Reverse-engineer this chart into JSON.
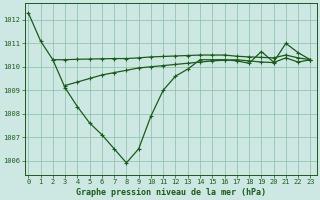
{
  "line1_x": [
    0,
    1,
    2,
    3,
    4,
    5,
    6,
    7,
    8,
    9,
    10,
    11,
    12,
    13,
    14,
    15,
    16,
    17,
    18,
    19,
    20,
    21,
    22,
    23
  ],
  "line1_y": [
    1012.3,
    1011.1,
    1010.3,
    1009.1,
    1008.3,
    1007.6,
    1007.1,
    1006.5,
    1005.9,
    1006.5,
    1007.9,
    1009.0,
    1009.6,
    1009.9,
    1010.3,
    1010.3,
    1010.3,
    1010.25,
    1010.15,
    1010.65,
    1010.2,
    1011.0,
    1010.6,
    1010.3
  ],
  "line2_x": [
    2,
    3,
    4,
    5,
    6,
    7,
    8,
    9,
    10,
    11,
    12,
    13,
    14,
    15,
    16,
    17,
    18,
    19,
    20,
    21,
    22,
    23
  ],
  "line2_y": [
    1010.3,
    1010.3,
    1010.32,
    1010.33,
    1010.34,
    1010.35,
    1010.35,
    1010.38,
    1010.42,
    1010.44,
    1010.46,
    1010.48,
    1010.5,
    1010.5,
    1010.5,
    1010.45,
    1010.42,
    1010.4,
    1010.38,
    1010.5,
    1010.38,
    1010.3
  ],
  "line3_x": [
    3,
    4,
    5,
    6,
    7,
    8,
    9,
    10,
    11,
    12,
    13,
    14,
    15,
    16,
    17,
    18,
    19,
    20,
    21,
    22,
    23
  ],
  "line3_y": [
    1009.2,
    1009.35,
    1009.5,
    1009.65,
    1009.75,
    1009.85,
    1009.95,
    1010.0,
    1010.05,
    1010.1,
    1010.15,
    1010.2,
    1010.25,
    1010.28,
    1010.3,
    1010.25,
    1010.2,
    1010.18,
    1010.38,
    1010.2,
    1010.3
  ],
  "bg_color": "#cde8e2",
  "line_color": "#1a5c1a",
  "grid_color": "#88c0a8",
  "xlabel": "Graphe pression niveau de la mer (hPa)",
  "ylim": [
    1005.4,
    1012.7
  ],
  "yticks": [
    1006,
    1007,
    1008,
    1009,
    1010,
    1011,
    1012
  ],
  "xticks": [
    0,
    1,
    2,
    3,
    4,
    5,
    6,
    7,
    8,
    9,
    10,
    11,
    12,
    13,
    14,
    15,
    16,
    17,
    18,
    19,
    20,
    21,
    22,
    23
  ],
  "tick_fontsize": 5.0,
  "xlabel_fontsize": 6.0
}
